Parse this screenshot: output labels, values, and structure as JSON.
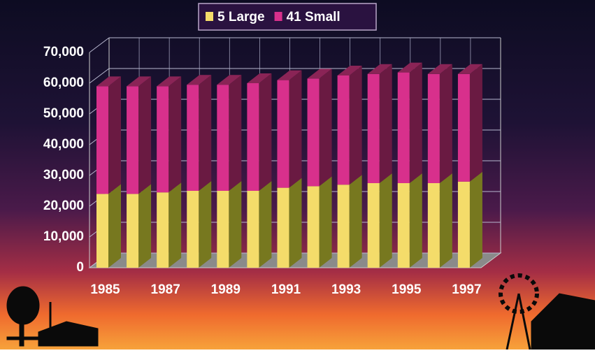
{
  "chart_data": {
    "type": "bar3d_stacked",
    "categories": [
      "1985",
      null,
      "1987",
      null,
      "1989",
      null,
      "1991",
      null,
      "1993",
      null,
      "1995",
      null,
      "1997"
    ],
    "series": [
      {
        "name": "5 Large",
        "color": "#f4dc6a",
        "values": [
          24000,
          24000,
          24500,
          25000,
          25000,
          25000,
          26000,
          26500,
          27000,
          27500,
          27500,
          27500,
          28000
        ]
      },
      {
        "name": "41 Small",
        "color": "#d8308c",
        "values": [
          35000,
          35000,
          34500,
          34500,
          34500,
          35000,
          35000,
          35000,
          35500,
          35500,
          36000,
          35500,
          35000
        ]
      }
    ],
    "ylim": [
      0,
      70000
    ],
    "yticks": [
      0,
      {
        "value": 10000,
        "label": "10,000"
      },
      {
        "value": 20000,
        "label": "20,000"
      },
      {
        "value": 30000,
        "label": "30,000"
      },
      {
        "value": 40000,
        "label": "40,000"
      },
      {
        "value": 50000,
        "label": "50,000"
      },
      {
        "value": 60000,
        "label": "60,000"
      },
      {
        "value": 70000,
        "label": "70,000"
      }
    ],
    "grid": true,
    "legend": "top"
  }
}
